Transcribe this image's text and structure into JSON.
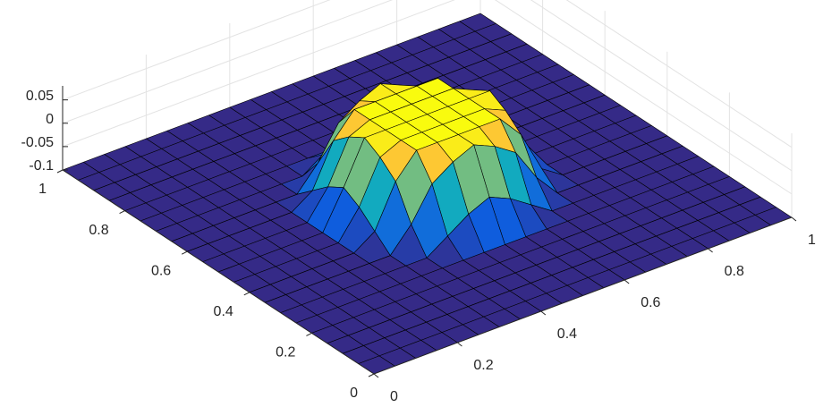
{
  "chart_data": {
    "type": "surface",
    "colormap": "parula",
    "edge_color": "#000000",
    "grid": true,
    "x": [
      0,
      0.05,
      0.1,
      0.15,
      0.2,
      0.25,
      0.3,
      0.35,
      0.4,
      0.45,
      0.5,
      0.55,
      0.6,
      0.65,
      0.7,
      0.75,
      0.8,
      0.85,
      0.9,
      0.95,
      1
    ],
    "y": [
      0,
      0.05,
      0.1,
      0.15,
      0.2,
      0.25,
      0.3,
      0.35,
      0.4,
      0.45,
      0.5,
      0.55,
      0.6,
      0.65,
      0.7,
      0.75,
      0.8,
      0.85,
      0.9,
      0.95,
      1
    ],
    "z": [
      [
        -0.1,
        -0.1,
        -0.1,
        -0.1,
        -0.1,
        -0.1,
        -0.1,
        -0.1,
        -0.1,
        -0.1,
        -0.1,
        -0.1,
        -0.1,
        -0.1,
        -0.1,
        -0.1,
        -0.1,
        -0.1,
        -0.1,
        -0.1,
        -0.1
      ],
      [
        -0.1,
        -0.1,
        -0.1,
        -0.1,
        -0.1,
        -0.1,
        -0.1,
        -0.1,
        -0.1,
        -0.1,
        -0.1,
        -0.1,
        -0.1,
        -0.1,
        -0.1,
        -0.1,
        -0.1,
        -0.1,
        -0.1,
        -0.1,
        -0.1
      ],
      [
        -0.1,
        -0.1,
        -0.1,
        -0.1,
        -0.1,
        -0.1,
        -0.1,
        -0.1,
        -0.1,
        -0.1,
        -0.1,
        -0.1,
        -0.1,
        -0.1,
        -0.1,
        -0.1,
        -0.1,
        -0.1,
        -0.1,
        -0.1,
        -0.1
      ],
      [
        -0.1,
        -0.1,
        -0.1,
        -0.1,
        -0.1,
        -0.1,
        -0.1,
        -0.1,
        -0.1,
        -0.1,
        -0.1,
        -0.1,
        -0.1,
        -0.1,
        -0.1,
        -0.1,
        -0.1,
        -0.1,
        -0.1,
        -0.1,
        -0.1
      ],
      [
        -0.1,
        -0.1,
        -0.1,
        -0.1,
        -0.1,
        -0.1,
        -0.1,
        -0.1,
        -0.1,
        -0.1,
        -0.1,
        -0.1,
        -0.1,
        -0.1,
        -0.1,
        -0.1,
        -0.1,
        -0.1,
        -0.1,
        -0.1,
        -0.1
      ],
      [
        -0.1,
        -0.1,
        -0.1,
        -0.1,
        -0.1,
        -0.1,
        -0.1,
        -0.1,
        -0.1,
        -0.1,
        -0.1,
        -0.1,
        -0.1,
        -0.1,
        -0.1,
        -0.1,
        -0.1,
        -0.1,
        -0.1,
        -0.1,
        -0.1
      ],
      [
        -0.1,
        -0.1,
        -0.1,
        -0.1,
        -0.1,
        -0.1,
        -0.1,
        -0.1,
        -0.07,
        -0.04,
        -0.02,
        -0.04,
        -0.07,
        -0.1,
        -0.1,
        -0.1,
        -0.1,
        -0.1,
        -0.1,
        -0.1,
        -0.1
      ],
      [
        -0.1,
        -0.1,
        -0.1,
        -0.1,
        -0.1,
        -0.1,
        -0.1,
        -0.05,
        0.02,
        0.05,
        0.07,
        0.05,
        0.02,
        -0.05,
        -0.1,
        -0.1,
        -0.1,
        -0.1,
        -0.1,
        -0.1,
        -0.1
      ],
      [
        -0.1,
        -0.1,
        -0.1,
        -0.1,
        -0.1,
        -0.1,
        -0.07,
        0.02,
        0.07,
        0.07,
        0.07,
        0.07,
        0.07,
        0.02,
        -0.07,
        -0.1,
        -0.1,
        -0.1,
        -0.1,
        -0.1,
        -0.1
      ],
      [
        -0.1,
        -0.1,
        -0.1,
        -0.1,
        -0.1,
        -0.1,
        -0.04,
        0.05,
        0.07,
        0.07,
        0.07,
        0.07,
        0.07,
        0.05,
        -0.04,
        -0.1,
        -0.1,
        -0.1,
        -0.1,
        -0.1,
        -0.1
      ],
      [
        -0.1,
        -0.1,
        -0.1,
        -0.1,
        -0.1,
        -0.1,
        -0.02,
        0.07,
        0.07,
        0.07,
        0.07,
        0.07,
        0.07,
        0.07,
        -0.02,
        -0.1,
        -0.1,
        -0.1,
        -0.1,
        -0.1,
        -0.1
      ],
      [
        -0.1,
        -0.1,
        -0.1,
        -0.1,
        -0.1,
        -0.1,
        -0.04,
        0.05,
        0.07,
        0.07,
        0.07,
        0.07,
        0.07,
        0.05,
        -0.04,
        -0.1,
        -0.1,
        -0.1,
        -0.1,
        -0.1,
        -0.1
      ],
      [
        -0.1,
        -0.1,
        -0.1,
        -0.1,
        -0.1,
        -0.1,
        -0.07,
        0.02,
        0.07,
        0.07,
        0.07,
        0.07,
        0.07,
        0.02,
        -0.07,
        -0.1,
        -0.1,
        -0.1,
        -0.1,
        -0.1,
        -0.1
      ],
      [
        -0.1,
        -0.1,
        -0.1,
        -0.1,
        -0.1,
        -0.1,
        -0.1,
        -0.05,
        0.02,
        0.05,
        0.07,
        0.05,
        0.02,
        -0.05,
        -0.1,
        -0.1,
        -0.1,
        -0.1,
        -0.1,
        -0.1,
        -0.1
      ],
      [
        -0.1,
        -0.1,
        -0.1,
        -0.1,
        -0.1,
        -0.1,
        -0.1,
        -0.1,
        -0.07,
        -0.04,
        -0.02,
        -0.04,
        -0.07,
        -0.1,
        -0.1,
        -0.1,
        -0.1,
        -0.1,
        -0.1,
        -0.1,
        -0.1
      ],
      [
        -0.1,
        -0.1,
        -0.1,
        -0.1,
        -0.1,
        -0.1,
        -0.1,
        -0.1,
        -0.1,
        -0.1,
        -0.1,
        -0.1,
        -0.1,
        -0.1,
        -0.1,
        -0.1,
        -0.1,
        -0.1,
        -0.1,
        -0.1,
        -0.1
      ],
      [
        -0.1,
        -0.1,
        -0.1,
        -0.1,
        -0.1,
        -0.1,
        -0.1,
        -0.1,
        -0.1,
        -0.1,
        -0.1,
        -0.1,
        -0.1,
        -0.1,
        -0.1,
        -0.1,
        -0.1,
        -0.1,
        -0.1,
        -0.1,
        -0.1
      ],
      [
        -0.1,
        -0.1,
        -0.1,
        -0.1,
        -0.1,
        -0.1,
        -0.1,
        -0.1,
        -0.1,
        -0.1,
        -0.1,
        -0.1,
        -0.1,
        -0.1,
        -0.1,
        -0.1,
        -0.1,
        -0.1,
        -0.1,
        -0.1,
        -0.1
      ],
      [
        -0.1,
        -0.1,
        -0.1,
        -0.1,
        -0.1,
        -0.1,
        -0.1,
        -0.1,
        -0.1,
        -0.1,
        -0.1,
        -0.1,
        -0.1,
        -0.1,
        -0.1,
        -0.1,
        -0.1,
        -0.1,
        -0.1,
        -0.1,
        -0.1
      ],
      [
        -0.1,
        -0.1,
        -0.1,
        -0.1,
        -0.1,
        -0.1,
        -0.1,
        -0.1,
        -0.1,
        -0.1,
        -0.1,
        -0.1,
        -0.1,
        -0.1,
        -0.1,
        -0.1,
        -0.1,
        -0.1,
        -0.1,
        -0.1,
        -0.1
      ],
      [
        -0.1,
        -0.1,
        -0.1,
        -0.1,
        -0.1,
        -0.1,
        -0.1,
        -0.1,
        -0.1,
        -0.1,
        -0.1,
        -0.1,
        -0.1,
        -0.1,
        -0.1,
        -0.1,
        -0.1,
        -0.1,
        -0.1,
        -0.1,
        -0.1
      ]
    ],
    "xlim": [
      0,
      1
    ],
    "ylim": [
      0,
      1
    ],
    "zlim": [
      -0.1,
      0.08
    ],
    "xticks": [
      0,
      0.2,
      0.4,
      0.6,
      0.8,
      1
    ],
    "yticks": [
      0,
      0.2,
      0.4,
      0.6,
      0.8,
      1
    ],
    "zticks": [
      -0.1,
      -0.05,
      0,
      0.05
    ]
  }
}
